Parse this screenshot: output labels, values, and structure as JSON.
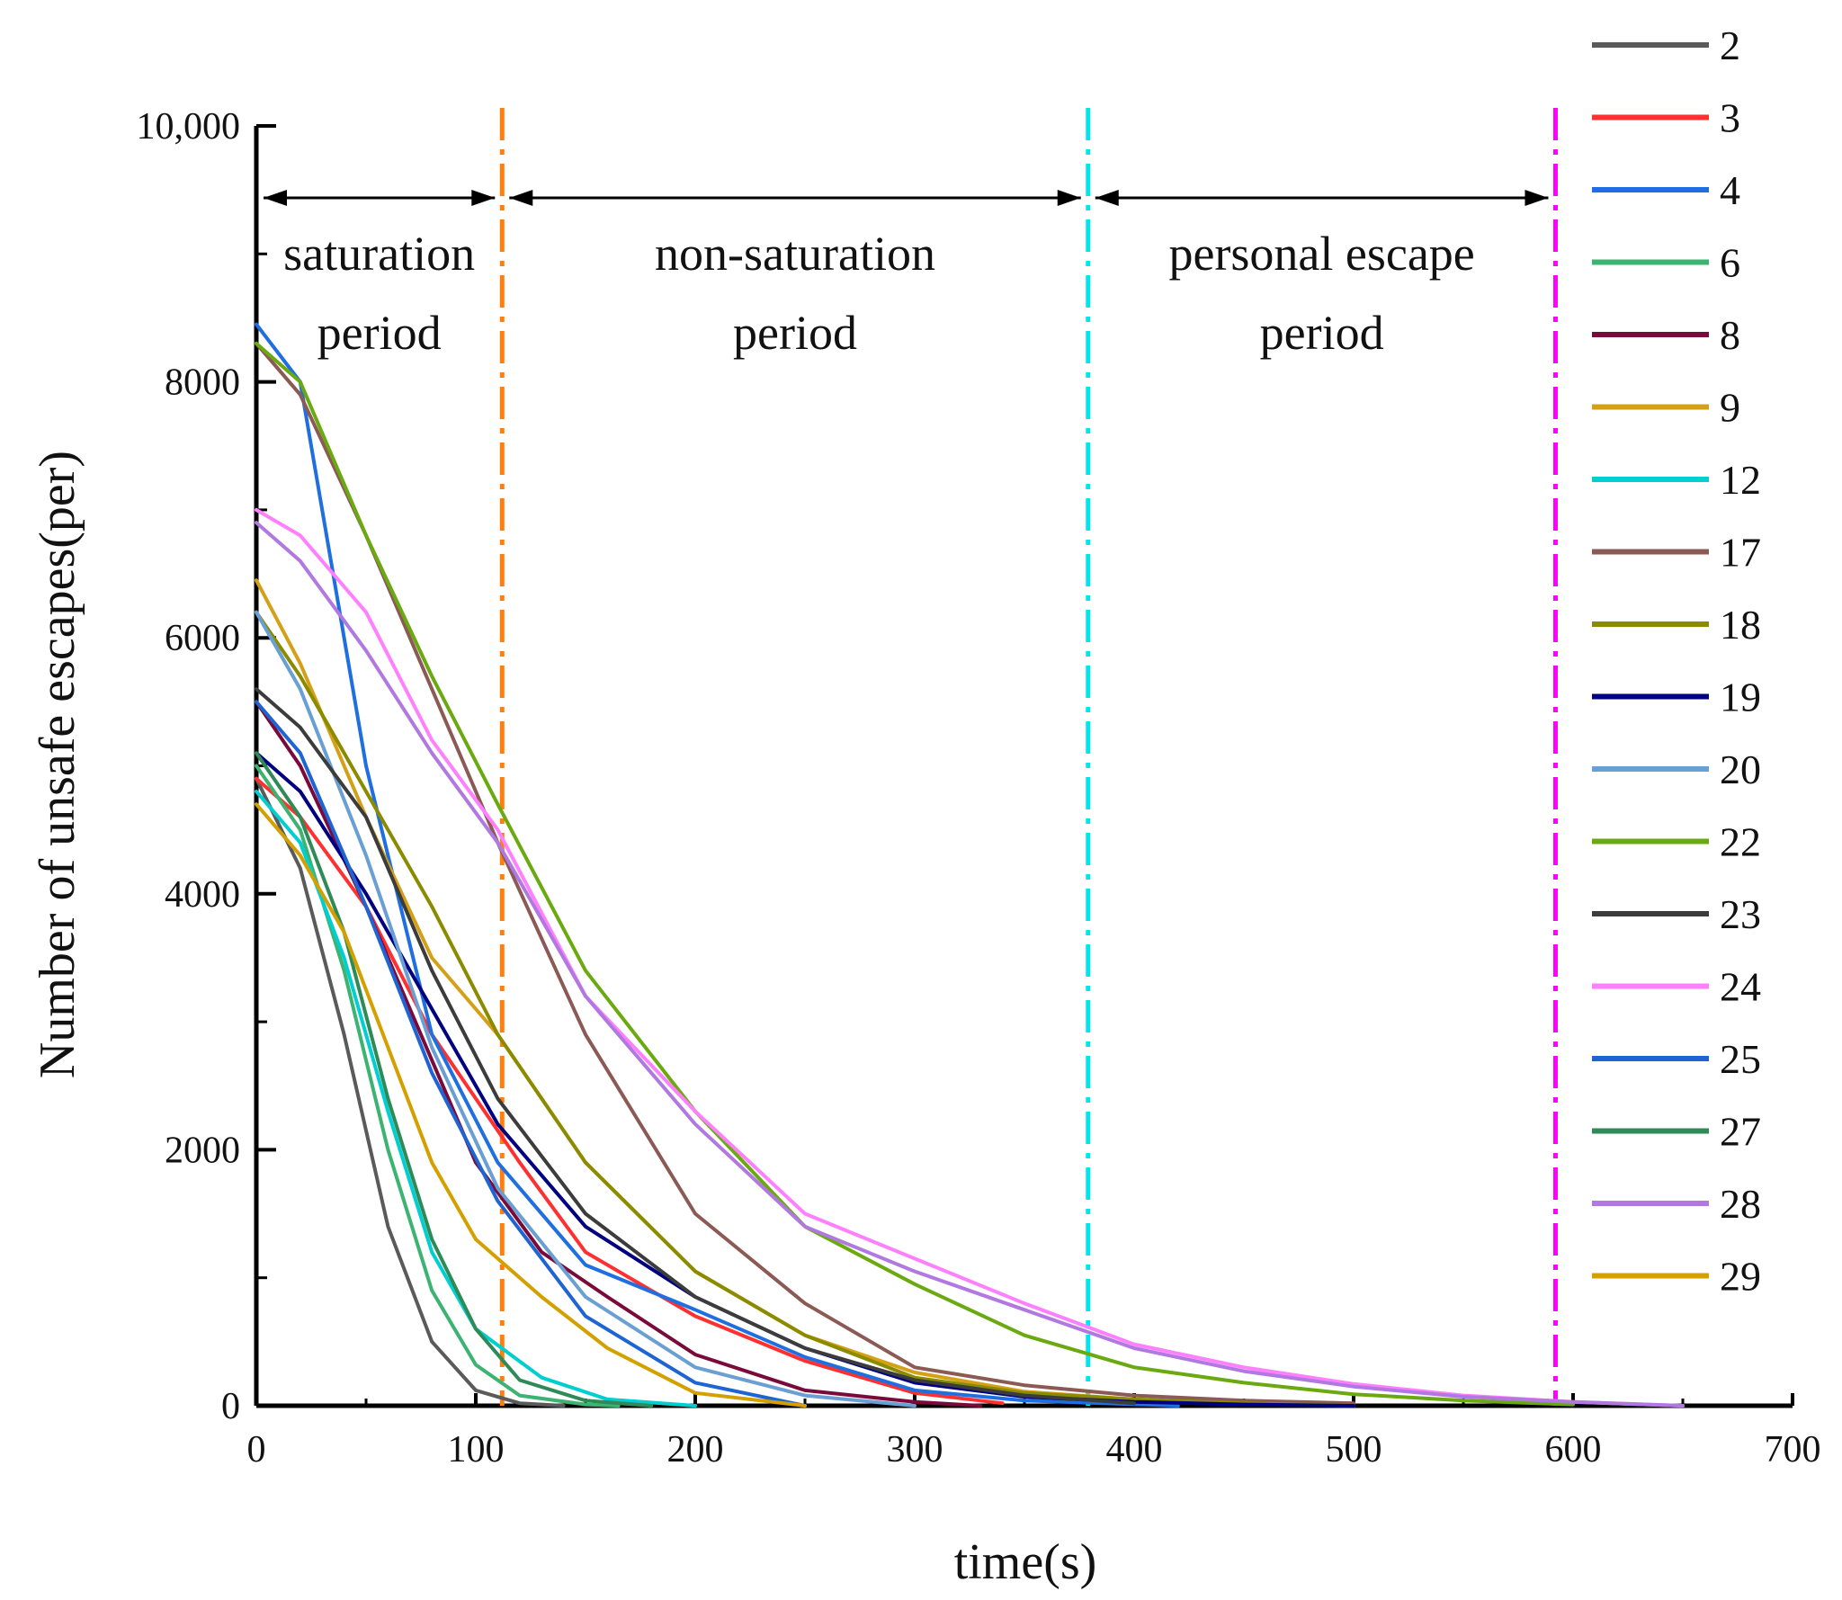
{
  "chart_data": {
    "type": "line",
    "xlabel": "time(s)",
    "ylabel": "Number of unsafe escapes(per)",
    "xlim": [
      0,
      700
    ],
    "ylim": [
      0,
      10000
    ],
    "x_ticks": [
      0,
      100,
      200,
      300,
      400,
      500,
      600,
      700
    ],
    "x_tick_labels": [
      "0",
      "100",
      "200",
      "300",
      "400",
      "500",
      "600",
      "700"
    ],
    "y_ticks": [
      0,
      2000,
      4000,
      6000,
      8000,
      10000
    ],
    "y_tick_labels": [
      "0",
      "2000",
      "4000",
      "6000",
      "8000",
      "10,000"
    ],
    "grid": false,
    "legend_position": "right",
    "dividers": [
      {
        "x": 112,
        "color": "#ff7f0e"
      },
      {
        "x": 379,
        "color": "#00e5ee"
      },
      {
        "x": 592,
        "color": "#ff00ff"
      }
    ],
    "periods": [
      {
        "line1": "saturation",
        "line2": "period",
        "x_start": 0,
        "x_end": 112
      },
      {
        "line1": "non-saturation",
        "line2": "period",
        "x_start": 112,
        "x_end": 379
      },
      {
        "line1": "personal escape",
        "line2": "period",
        "x_start": 379,
        "x_end": 592
      }
    ],
    "series": [
      {
        "name": "2",
        "color": "#5a5a5a",
        "x": [
          0,
          20,
          40,
          60,
          80,
          100,
          120,
          140
        ],
        "values": [
          4900,
          4200,
          2900,
          1400,
          500,
          120,
          20,
          0
        ]
      },
      {
        "name": "3",
        "color": "#ff3030",
        "x": [
          0,
          20,
          50,
          80,
          100,
          120,
          150,
          200,
          250,
          300,
          340
        ],
        "values": [
          4900,
          4600,
          3900,
          2900,
          2400,
          1900,
          1200,
          700,
          350,
          100,
          20
        ]
      },
      {
        "name": "4",
        "color": "#1f6fe0",
        "x": [
          0,
          20,
          50,
          80,
          110,
          150,
          200,
          250,
          300,
          350,
          420
        ],
        "values": [
          8450,
          8000,
          5000,
          2900,
          1900,
          1100,
          750,
          380,
          120,
          40,
          0
        ]
      },
      {
        "name": "6",
        "color": "#3cb371",
        "x": [
          0,
          20,
          40,
          60,
          80,
          100,
          120,
          150,
          165
        ],
        "values": [
          5000,
          4500,
          3400,
          2000,
          900,
          320,
          80,
          10,
          0
        ]
      },
      {
        "name": "8",
        "color": "#7a0a3a",
        "x": [
          0,
          20,
          50,
          80,
          100,
          130,
          160,
          200,
          250,
          300,
          330
        ],
        "values": [
          5500,
          5000,
          3900,
          2700,
          1900,
          1200,
          850,
          400,
          120,
          30,
          0
        ]
      },
      {
        "name": "9",
        "color": "#d4a017",
        "x": [
          0,
          20,
          50,
          80,
          110,
          150,
          200,
          250,
          300,
          350,
          400,
          450,
          500
        ],
        "values": [
          6450,
          5800,
          4600,
          3500,
          2900,
          1900,
          1050,
          550,
          260,
          110,
          50,
          20,
          0
        ]
      },
      {
        "name": "12",
        "color": "#00ced1",
        "x": [
          0,
          20,
          40,
          60,
          80,
          100,
          130,
          160,
          200
        ],
        "values": [
          4800,
          4400,
          3500,
          2300,
          1200,
          600,
          220,
          50,
          0
        ]
      },
      {
        "name": "17",
        "color": "#8b5a55",
        "x": [
          0,
          20,
          50,
          80,
          110,
          150,
          200,
          250,
          300,
          350,
          400,
          450,
          500
        ],
        "values": [
          8300,
          7900,
          6800,
          5600,
          4400,
          2900,
          1500,
          800,
          300,
          160,
          80,
          40,
          20
        ]
      },
      {
        "name": "18",
        "color": "#8b8b00",
        "x": [
          0,
          20,
          50,
          80,
          110,
          150,
          200,
          250,
          300,
          350,
          400,
          450,
          500
        ],
        "values": [
          6200,
          5700,
          4800,
          3900,
          2900,
          1900,
          1050,
          550,
          220,
          100,
          50,
          20,
          0
        ]
      },
      {
        "name": "19",
        "color": "#000080",
        "x": [
          0,
          20,
          50,
          80,
          110,
          150,
          200,
          250,
          300,
          350,
          400,
          450,
          500
        ],
        "values": [
          5100,
          4800,
          4000,
          3100,
          2200,
          1400,
          850,
          450,
          180,
          70,
          30,
          10,
          0
        ]
      },
      {
        "name": "20",
        "color": "#6a9fd4",
        "x": [
          0,
          20,
          50,
          80,
          110,
          150,
          200,
          250,
          300
        ],
        "values": [
          6200,
          5600,
          4300,
          2800,
          1700,
          850,
          300,
          80,
          0
        ]
      },
      {
        "name": "22",
        "color": "#6aaa10",
        "x": [
          0,
          20,
          50,
          80,
          110,
          150,
          200,
          250,
          300,
          350,
          400,
          450,
          500,
          550,
          600
        ],
        "values": [
          8300,
          8000,
          6800,
          5700,
          4700,
          3400,
          2300,
          1400,
          950,
          550,
          300,
          180,
          90,
          40,
          10
        ]
      },
      {
        "name": "23",
        "color": "#3c3c3c",
        "x": [
          0,
          20,
          50,
          80,
          110,
          150,
          200,
          250,
          300,
          350,
          400
        ],
        "values": [
          5600,
          5300,
          4600,
          3400,
          2400,
          1500,
          850,
          450,
          200,
          80,
          20
        ]
      },
      {
        "name": "24",
        "color": "#ff80ff",
        "x": [
          0,
          20,
          50,
          80,
          110,
          150,
          200,
          250,
          300,
          350,
          400,
          450,
          500,
          550,
          600,
          650
        ],
        "values": [
          7000,
          6800,
          6200,
          5200,
          4500,
          3200,
          2300,
          1500,
          1150,
          800,
          480,
          300,
          170,
          80,
          30,
          0
        ]
      },
      {
        "name": "25",
        "color": "#1e64d2",
        "x": [
          0,
          20,
          50,
          80,
          110,
          150,
          200,
          250
        ],
        "values": [
          5500,
          5100,
          3900,
          2600,
          1600,
          700,
          180,
          0
        ]
      },
      {
        "name": "27",
        "color": "#2e8b57",
        "x": [
          0,
          20,
          40,
          60,
          80,
          100,
          120,
          150,
          180
        ],
        "values": [
          5100,
          4600,
          3700,
          2400,
          1300,
          600,
          200,
          40,
          0
        ]
      },
      {
        "name": "28",
        "color": "#b078e0",
        "x": [
          0,
          20,
          50,
          80,
          110,
          150,
          200,
          250,
          300,
          350,
          400,
          450,
          500,
          550,
          600,
          650
        ],
        "values": [
          6900,
          6600,
          5900,
          5100,
          4400,
          3200,
          2200,
          1400,
          1050,
          750,
          450,
          270,
          150,
          70,
          30,
          0
        ]
      },
      {
        "name": "29",
        "color": "#d4a000",
        "x": [
          0,
          20,
          40,
          60,
          80,
          100,
          130,
          160,
          200,
          250
        ],
        "values": [
          4700,
          4300,
          3700,
          2800,
          1900,
          1300,
          850,
          450,
          100,
          0
        ]
      }
    ]
  }
}
